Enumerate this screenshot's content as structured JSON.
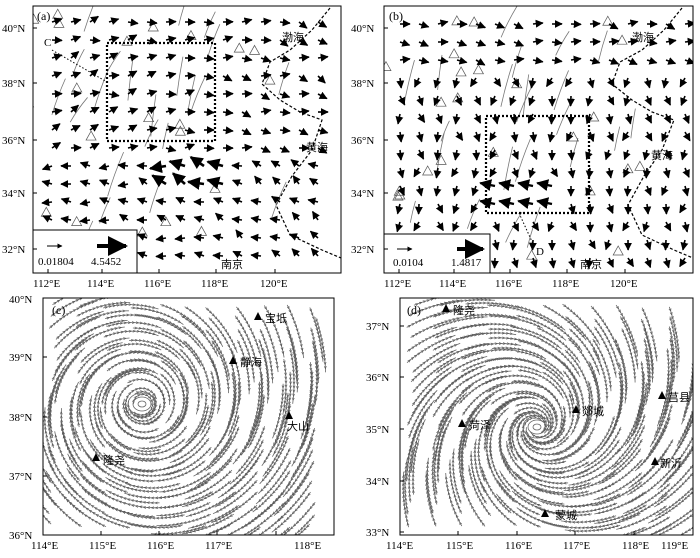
{
  "figure": {
    "panel_a": {
      "label": "(a)",
      "y_ticks": [
        "40°N",
        "38°N",
        "36°N",
        "34°N",
        "32°N"
      ],
      "x_ticks": [
        "112°E",
        "114°E",
        "116°E",
        "118°E",
        "120°E"
      ],
      "sea_labels": [
        "渤海",
        "黄海"
      ],
      "city": "南京",
      "profile": "C",
      "legend": {
        "small_value": "0.01804",
        "large_value": "4.5452"
      }
    },
    "panel_b": {
      "label": "(b)",
      "y_ticks": [
        "40°N",
        "38°N",
        "36°N",
        "34°N",
        "32°N"
      ],
      "x_ticks": [
        "112°E",
        "114°E",
        "116°E",
        "118°E",
        "120°E"
      ],
      "sea_labels": [
        "渤海",
        "黄海"
      ],
      "city": "南京",
      "profile": "D",
      "legend": {
        "small_value": "0.0104",
        "large_value": "1.4817"
      }
    },
    "panel_c": {
      "label": "(c)",
      "y_ticks": [
        "40°N",
        "39°N",
        "38°N",
        "37°N",
        "36°N"
      ],
      "x_ticks": [
        "114°E",
        "115°E",
        "116°E",
        "117°E",
        "118°E"
      ],
      "stations": [
        "宝坻",
        "静海",
        "大山",
        "隆尧"
      ]
    },
    "panel_d": {
      "label": "(d)",
      "y_ticks": [
        "37°N",
        "36°N",
        "35°N",
        "34°N",
        "33°N"
      ],
      "x_ticks": [
        "114°E",
        "115°E",
        "116°E",
        "117°E",
        "118°E",
        "119°E"
      ],
      "stations": [
        "隆尧",
        "菏泽",
        "郯城",
        "莒县",
        "新沂",
        "蒙城"
      ]
    }
  }
}
